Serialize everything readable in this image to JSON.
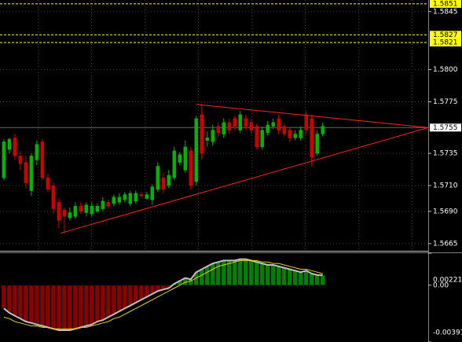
{
  "chart_data": [
    {
      "type": "candlestick",
      "open": [
        1.5716,
        1.5738,
        1.5747,
        1.5733,
        1.5728,
        1.5706,
        1.573,
        1.5744,
        1.5716,
        1.571,
        1.5697,
        1.5691,
        1.5685,
        1.5686,
        1.5694,
        1.5689,
        1.5688,
        1.569,
        1.5692,
        1.5697,
        1.5696,
        1.5697,
        1.5699,
        1.5696,
        1.5698,
        1.5703,
        1.57,
        1.5699,
        1.5707,
        1.5716,
        1.571,
        1.5716,
        1.5728,
        1.5722,
        1.5737,
        1.5713,
        1.5765,
        1.5745,
        1.5744,
        1.5756,
        1.575,
        1.5759,
        1.5762,
        1.5753,
        1.5762,
        1.5759,
        1.5756,
        1.574,
        1.5751,
        1.5756,
        1.5762,
        1.5756,
        1.5753,
        1.5747,
        1.5747,
        1.5765,
        1.5762,
        1.5735,
        1.575
      ],
      "high": [
        1.5746,
        1.5747,
        1.575,
        1.5737,
        1.5733,
        1.5735,
        1.5745,
        1.5746,
        1.5719,
        1.5712,
        1.57,
        1.5693,
        1.5693,
        1.5697,
        1.5697,
        1.5697,
        1.5697,
        1.5696,
        1.5701,
        1.5699,
        1.5703,
        1.5704,
        1.5705,
        1.5706,
        1.5706,
        1.5705,
        1.5705,
        1.5711,
        1.5728,
        1.572,
        1.5722,
        1.574,
        1.5736,
        1.5745,
        1.574,
        1.5764,
        1.5773,
        1.5752,
        1.5757,
        1.5759,
        1.5762,
        1.5762,
        1.5764,
        1.5768,
        1.5765,
        1.5762,
        1.5758,
        1.5756,
        1.576,
        1.5762,
        1.5765,
        1.5758,
        1.5755,
        1.5753,
        1.5756,
        1.5768,
        1.5765,
        1.5753,
        1.5759
      ],
      "low": [
        1.5714,
        1.5735,
        1.573,
        1.5722,
        1.5708,
        1.5702,
        1.5726,
        1.5714,
        1.5705,
        1.5688,
        1.5677,
        1.5673,
        1.5683,
        1.5684,
        1.5688,
        1.5686,
        1.5686,
        1.5689,
        1.569,
        1.5692,
        1.5694,
        1.5695,
        1.5697,
        1.5694,
        1.5696,
        1.57,
        1.5699,
        1.5695,
        1.5705,
        1.5704,
        1.5708,
        1.5714,
        1.5726,
        1.572,
        1.5707,
        1.571,
        1.573,
        1.574,
        1.5741,
        1.5748,
        1.5747,
        1.575,
        1.5753,
        1.5751,
        1.5753,
        1.575,
        1.5738,
        1.5738,
        1.5749,
        1.5754,
        1.575,
        1.5748,
        1.5744,
        1.5745,
        1.5745,
        1.575,
        1.5725,
        1.5733,
        1.5748
      ],
      "close": [
        1.5744,
        1.5746,
        1.5733,
        1.5727,
        1.5712,
        1.5733,
        1.5742,
        1.5716,
        1.5707,
        1.5692,
        1.5683,
        1.5686,
        1.5689,
        1.5694,
        1.569,
        1.5695,
        1.5694,
        1.5694,
        1.5698,
        1.5694,
        1.5701,
        1.5701,
        1.5703,
        1.5704,
        1.5704,
        1.5702,
        1.5703,
        1.5709,
        1.5725,
        1.5707,
        1.5718,
        1.5737,
        1.5734,
        1.574,
        1.571,
        1.5762,
        1.5735,
        1.5747,
        1.5753,
        1.5751,
        1.5759,
        1.5753,
        1.5756,
        1.5765,
        1.5756,
        1.5753,
        1.574,
        1.5753,
        1.5757,
        1.5759,
        1.5753,
        1.575,
        1.5747,
        1.575,
        1.5753,
        1.5753,
        1.5732,
        1.575,
        1.5756
      ],
      "up_color": "#00b400",
      "down_color": "#d00000",
      "xlim": [
        -0.7,
        77.2
      ],
      "ylim": [
        1.566,
        1.5854
      ],
      "yticks": [
        1.5845,
        {
          "value": 1.58,
          "label": "1.5800"
        },
        1.5775,
        1.5735,
        {
          "value": 1.571,
          "label": "1.5710"
        },
        {
          "value": 1.569,
          "label": "1.5690"
        },
        1.5665
      ],
      "grid": true,
      "level_color": "#ffff00",
      "price_levels": [
        {
          "value": 1.5851
        },
        {
          "value": 1.5827
        },
        {
          "value": 1.5821
        }
      ],
      "current_price": {
        "value": 1.5755
      },
      "trendline_color": "#ff2020",
      "trendlines": [
        {
          "x": [
            35,
            77.2
          ],
          "y": [
            1.5773,
            1.5755
          ]
        },
        {
          "x": [
            10.3,
            77.2
          ],
          "y": [
            1.5673,
            1.5755
          ]
        }
      ]
    },
    {
      "type": "oscillator",
      "values": [
        -0.0016,
        -0.0019,
        -0.0021,
        -0.0023,
        -0.0025,
        -0.0026,
        -0.0027,
        -0.0028,
        -0.0029,
        -0.003,
        -0.0031,
        -0.0031,
        -0.0031,
        -0.003,
        -0.0029,
        -0.0028,
        -0.0027,
        -0.0025,
        -0.0024,
        -0.0022,
        -0.002,
        -0.0018,
        -0.0016,
        -0.0014,
        -0.0012,
        -0.001,
        -0.0008,
        -0.0006,
        -0.0004,
        -0.0003,
        -0.0002,
        0.0001,
        0.0003,
        0.0005,
        0.0004,
        0.0009,
        0.0011,
        0.0013,
        0.0015,
        0.0016,
        0.0017,
        0.0017,
        0.0017,
        0.0018,
        0.0018,
        0.0017,
        0.0016,
        0.0015,
        0.0014,
        0.0014,
        0.0013,
        0.0012,
        0.0011,
        0.001,
        0.0009,
        0.001,
        0.0008,
        0.0007,
        0.0007
      ],
      "signal": [
        -0.0022,
        -0.0023,
        -0.0025,
        -0.0026,
        -0.0027,
        -0.0028,
        -0.0028,
        -0.0029,
        -0.0029,
        -0.003,
        -0.003,
        -0.003,
        -0.003,
        -0.003,
        -0.0029,
        -0.0029,
        -0.0028,
        -0.0027,
        -0.0026,
        -0.0025,
        -0.0023,
        -0.0022,
        -0.002,
        -0.0018,
        -0.0016,
        -0.0014,
        -0.0012,
        -0.001,
        -0.0008,
        -0.0006,
        -0.0004,
        -0.0002,
        0,
        0.0002,
        0.0003,
        0.0005,
        0.0007,
        0.0009,
        0.0011,
        0.0013,
        0.0014,
        0.0015,
        0.0016,
        0.0017,
        0.0017,
        0.0017,
        0.0017,
        0.0016,
        0.0016,
        0.0015,
        0.0015,
        0.0014,
        0.0013,
        0.0012,
        0.0011,
        0.0011,
        0.001,
        0.0009,
        0.0008
      ],
      "up_color": "#008000",
      "down_color": "#8b0000",
      "line_color": "#c0c0c0",
      "signal_color": "#e8d000",
      "ylim": [
        -0.00391,
        0.00221
      ],
      "yticks": [
        0.00221,
        {
          "value": 0,
          "label": "0.00"
        },
        -0.00391
      ]
    }
  ]
}
